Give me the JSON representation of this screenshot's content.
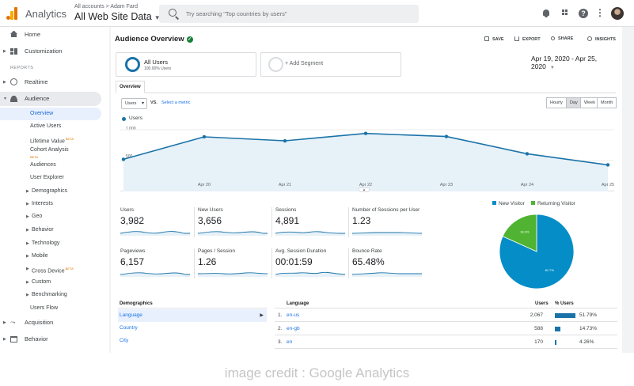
{
  "header": {
    "app_name": "Analytics",
    "breadcrumb": "All accounts > Adam Fard",
    "property": "All Web Site Data",
    "search_placeholder": "Try searching \"Top countries by users\""
  },
  "sidebar": {
    "home": "Home",
    "customization": "Customization",
    "reports_label": "REPORTS",
    "realtime": "Realtime",
    "audience": "Audience",
    "audience_items": [
      {
        "label": "Overview"
      },
      {
        "label": "Active Users"
      },
      {
        "label": "Lifetime Value",
        "badge": "BETA"
      },
      {
        "label": "Cohort Analysis",
        "badge": "BETA"
      },
      {
        "label": "Audiences"
      },
      {
        "label": "User Explorer"
      },
      {
        "label": "Demographics"
      },
      {
        "label": "Interests"
      },
      {
        "label": "Geo"
      },
      {
        "label": "Behavior"
      },
      {
        "label": "Technology"
      },
      {
        "label": "Mobile"
      },
      {
        "label": "Cross Device",
        "badge": "BETA"
      },
      {
        "label": "Custom"
      },
      {
        "label": "Benchmarking"
      },
      {
        "label": "Users Flow"
      }
    ],
    "acquisition": "Acquisition",
    "behavior": "Behavior"
  },
  "report": {
    "title": "Audience Overview",
    "actions": {
      "save": "SAVE",
      "export": "EXPORT",
      "share": "SHARE",
      "insights": "INSIGHTS"
    },
    "segment": {
      "name": "All Users",
      "sub": "100.00% Users"
    },
    "add_segment": "+ Add Segment",
    "date_range": "Apr 19, 2020 - Apr 25, 2020",
    "tab": "Overview",
    "metric_select": "Users",
    "vs": "VS.",
    "select_metric": "Select a metric",
    "granularity": [
      "Hourly",
      "Day",
      "Week",
      "Month"
    ],
    "granularity_selected": "Day",
    "series_label": "Users",
    "collapse": "▴"
  },
  "chart_data": {
    "type": "line",
    "series": [
      {
        "name": "Users",
        "values": [
          520,
          885,
          820,
          940,
          890,
          610,
          430
        ]
      }
    ],
    "x_ticks": [
      "Apr 20",
      "Apr 21",
      "Apr 22",
      "Apr 23",
      "Apr 24",
      "Apr 25"
    ],
    "y_ticks": [
      "1,000",
      "500"
    ],
    "ylim": [
      0,
      1000
    ],
    "color": "#1a73a8"
  },
  "metrics": [
    {
      "label": "Users",
      "value": "3,982"
    },
    {
      "label": "New Users",
      "value": "3,656"
    },
    {
      "label": "Sessions",
      "value": "4,891"
    },
    {
      "label": "Number of Sessions per User",
      "value": "1.23"
    },
    {
      "label": "Pageviews",
      "value": "6,157"
    },
    {
      "label": "Pages / Session",
      "value": "1.26"
    },
    {
      "label": "Avg. Session Duration",
      "value": "00:01:59"
    },
    {
      "label": "Bounce Rate",
      "value": "65.48%"
    }
  ],
  "pie": {
    "legend": [
      {
        "name": "New Visitor",
        "color": "#058dc7"
      },
      {
        "name": "Returning Visitor",
        "color": "#50b432"
      }
    ],
    "slices": [
      {
        "name": "New Visitor",
        "percent": 81.7,
        "label": "81.7%"
      },
      {
        "name": "Returning Visitor",
        "percent": 18.3,
        "label": "18.3%"
      }
    ]
  },
  "demographics": {
    "header": "Demographics",
    "rows": [
      "Language",
      "Country",
      "City"
    ]
  },
  "language_table": {
    "headers": {
      "language": "Language",
      "users": "Users",
      "pct": "% Users"
    },
    "rows": [
      {
        "rank": "1.",
        "lang": "en-us",
        "users": "2,067",
        "pct": "51.79%",
        "fraction": 0.5179
      },
      {
        "rank": "2.",
        "lang": "en-gb",
        "users": "588",
        "pct": "14.73%",
        "fraction": 0.1473
      },
      {
        "rank": "3.",
        "lang": "en",
        "users": "170",
        "pct": "4.26%",
        "fraction": 0.0426
      }
    ]
  },
  "caption": "image credit : Google Analytics"
}
